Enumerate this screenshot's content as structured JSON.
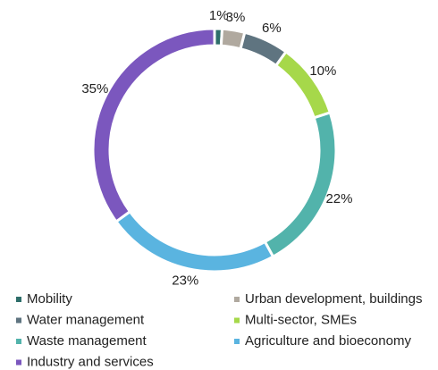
{
  "chart_data": {
    "type": "donut",
    "categories": [
      "Mobility",
      "Urban development, buildings",
      "Water management",
      "Multi-sector, SMEs",
      "Waste management",
      "Agriculture and bioeconomy",
      "Industry and services"
    ],
    "values": [
      1,
      3,
      6,
      10,
      22,
      23,
      35
    ],
    "value_labels": [
      "1%",
      "3%",
      "6%",
      "10%",
      "22%",
      "23%",
      "35%"
    ],
    "colors": [
      "#2e6e6a",
      "#b0a99f",
      "#5f7480",
      "#a6d84a",
      "#52b3ab",
      "#5ab4e0",
      "#7b57be"
    ],
    "legend": "bottom"
  }
}
